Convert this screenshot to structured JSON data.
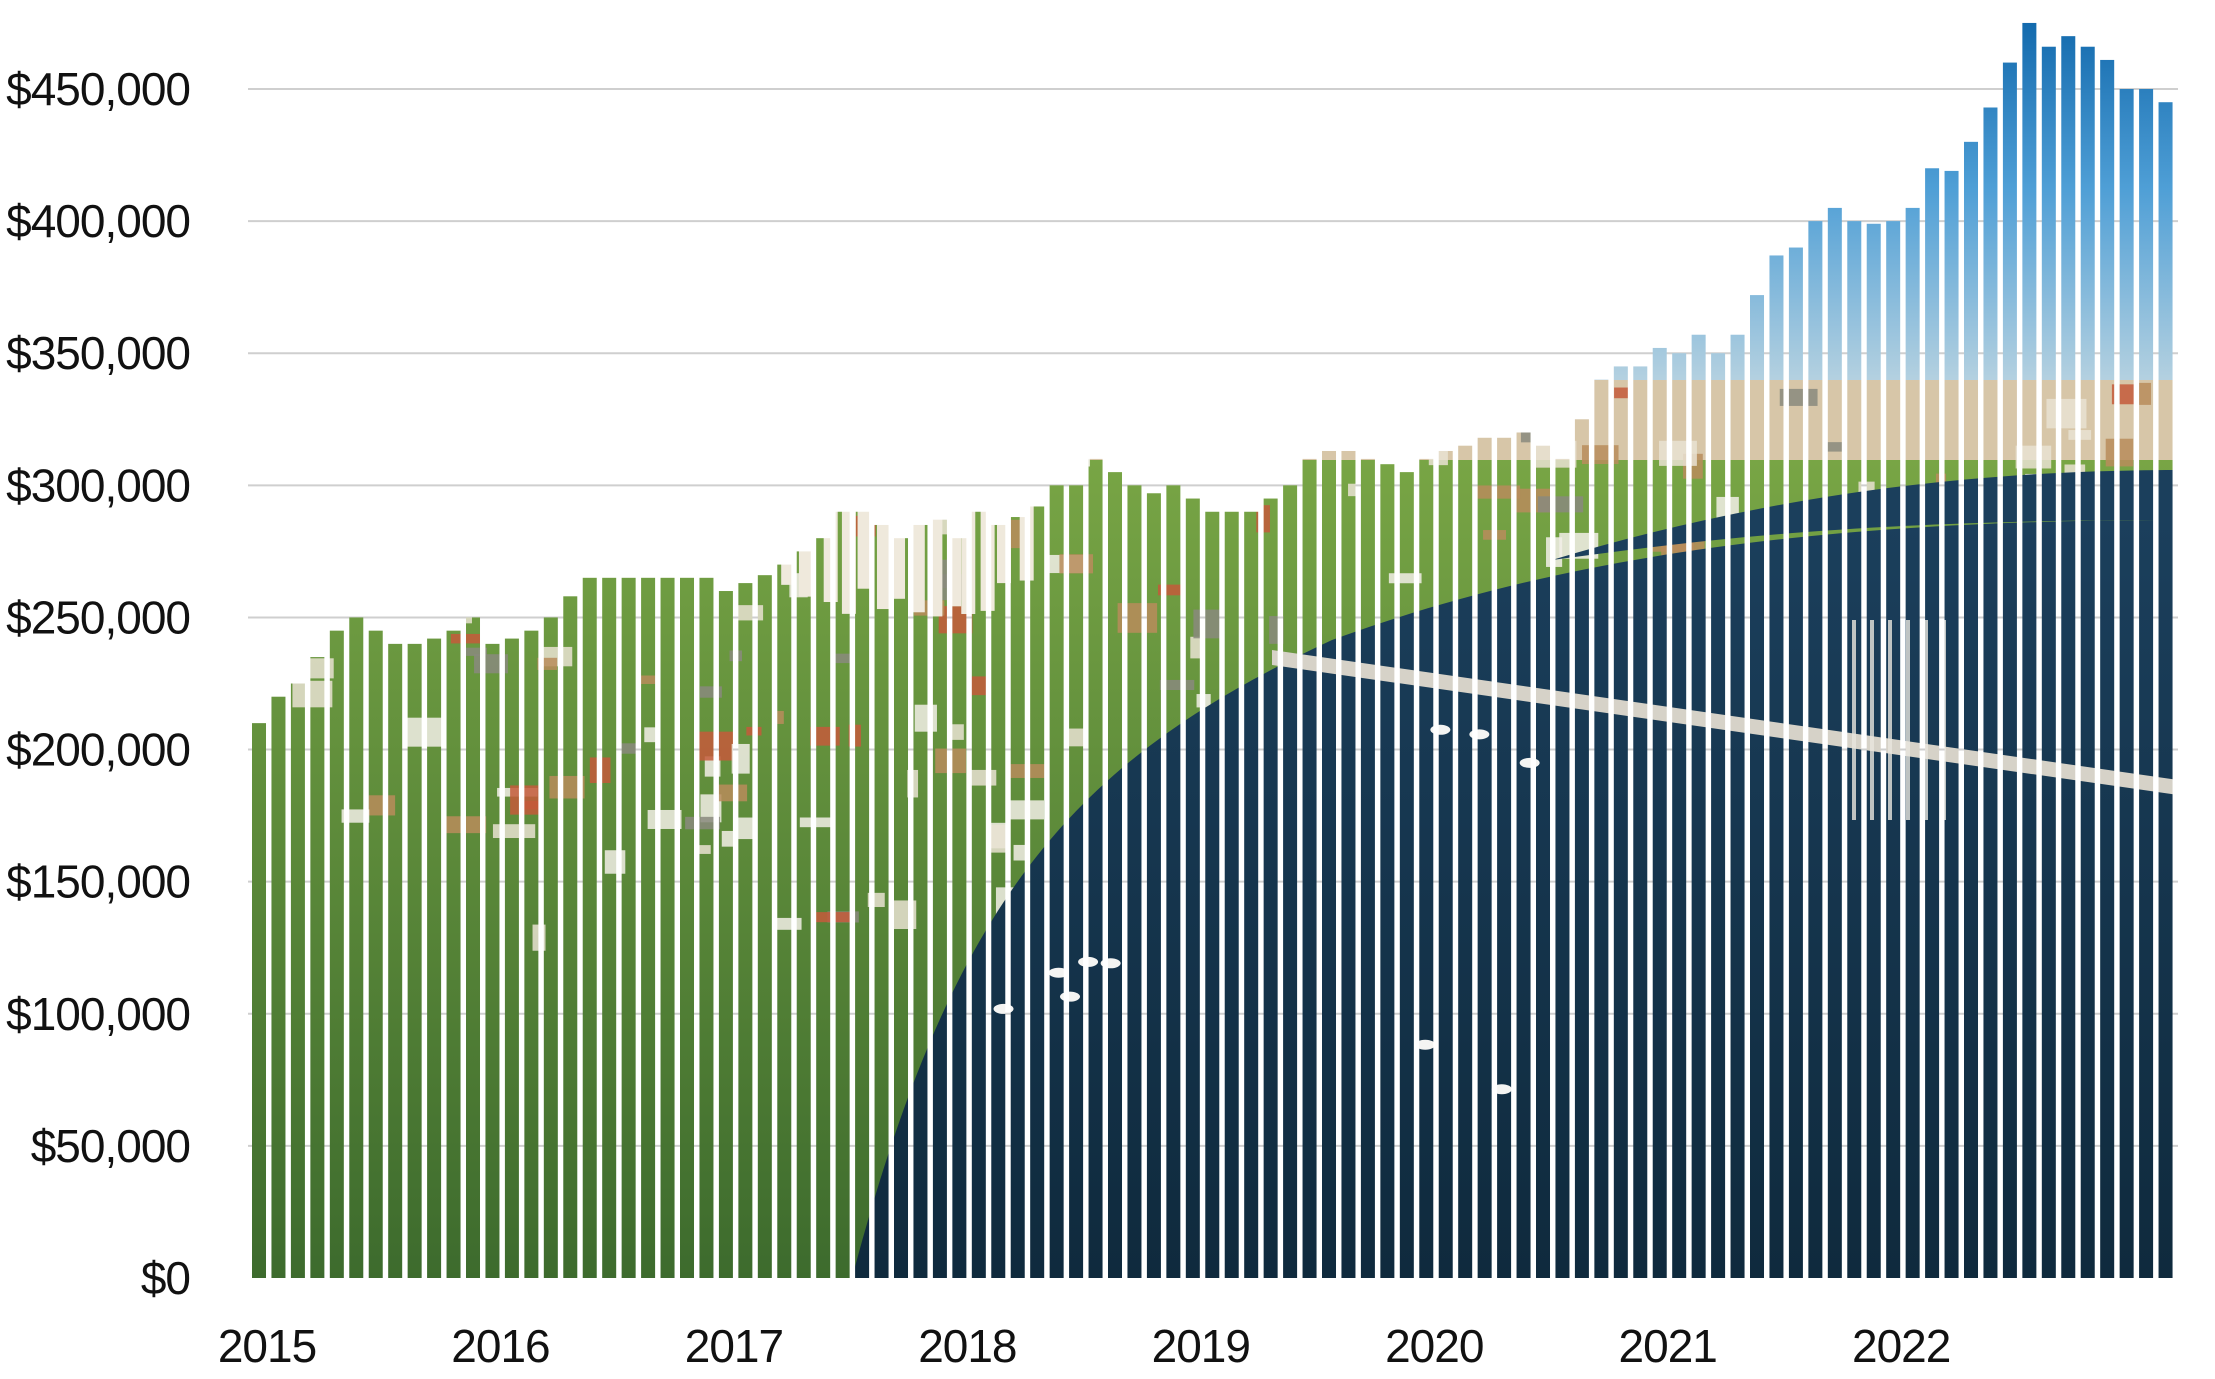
{
  "chart_data": {
    "type": "bar",
    "title": "",
    "xlabel": "",
    "ylabel": "",
    "ylim": [
      0,
      450000
    ],
    "grid": true,
    "legend": "none",
    "y_ticks": [
      "$0",
      "$50,000",
      "$100,000",
      "$150,000",
      "$200,000",
      "$250,000",
      "$300,000",
      "$350,000",
      "$400,000",
      "$450,000"
    ],
    "y_tick_values": [
      0,
      50000,
      100000,
      150000,
      200000,
      250000,
      300000,
      350000,
      400000,
      450000
    ],
    "x_ticks": [
      "2015",
      "2016",
      "2017",
      "2018",
      "2019",
      "2020",
      "2021",
      "2022"
    ],
    "frequency": "monthly",
    "start": "2015-01",
    "series": [
      {
        "values": [
          210000,
          220000,
          225000,
          235000,
          245000,
          250000,
          245000,
          240000,
          240000,
          242000,
          245000,
          250000,
          240000,
          242000,
          245000,
          250000,
          258000,
          265000,
          265000,
          265000,
          265000,
          265000,
          265000,
          265000,
          260000,
          263000,
          266000,
          270000,
          275000,
          280000,
          290000,
          290000,
          285000,
          280000,
          285000,
          287000,
          280000,
          290000,
          285000,
          288000,
          292000,
          300000,
          300000,
          310000,
          305000,
          300000,
          297000,
          300000,
          295000,
          290000,
          290000,
          290000,
          295000,
          300000,
          310000,
          313000,
          313000,
          310000,
          308000,
          305000,
          310000,
          313000,
          315000,
          318000,
          318000,
          320000,
          315000,
          310000,
          325000,
          340000,
          345000,
          345000,
          352000,
          350000,
          357000,
          350000,
          357000,
          372000,
          387000,
          390000,
          400000,
          405000,
          400000,
          399000,
          400000,
          405000,
          420000,
          419000,
          430000,
          443000,
          460000,
          475000,
          466000,
          470000,
          466000,
          461000,
          450000,
          450000,
          445000
        ]
      }
    ],
    "colors": {
      "sky_top": "#0b63a8",
      "sky_mid": "#4f9fd6",
      "haze": "#c9dbe2",
      "city": "#d7c6a8",
      "trees": "#3d6b2d",
      "lawn": "#78a545",
      "water": "#1b3f5c",
      "water_deep": "#0f2a3d",
      "grid": "#cfcfcf",
      "text": "#111111"
    }
  }
}
